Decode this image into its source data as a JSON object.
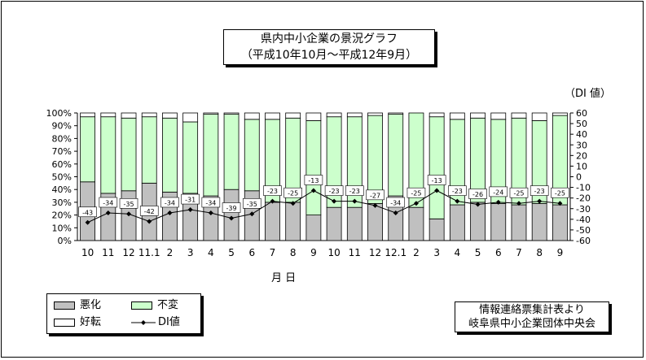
{
  "title": {
    "line1": "県内中小企業の景況グラフ",
    "line2": "（平成10年10月～平成12年9月）"
  },
  "right_axis_unit": "（DI 値）",
  "x_axis_title": "月 日",
  "legend": {
    "bad": "悪化",
    "same": "不変",
    "good": "好転",
    "di": "DI値"
  },
  "source": {
    "line1": "情報連絡票集計表より",
    "line2": "岐阜県中小企業団体中央会"
  },
  "colors": {
    "bad": "#c0c0c0",
    "same": "#ccffcc",
    "good": "#ffffff",
    "di_line": "#000000"
  },
  "chart_data": {
    "type": "bar",
    "stacked": true,
    "categories": [
      "10",
      "11",
      "12",
      "11.1",
      "2",
      "3",
      "4",
      "5",
      "6",
      "7",
      "8",
      "9",
      "10",
      "11",
      "12",
      "12.1",
      "2",
      "3",
      "4",
      "5",
      "6",
      "7",
      "8",
      "9"
    ],
    "series": [
      {
        "name": "悪化",
        "values": [
          46,
          37,
          39,
          45,
          38,
          37,
          35,
          40,
          39,
          30,
          30,
          20,
          26,
          26,
          29,
          35,
          26,
          17,
          28,
          30,
          29,
          28,
          29,
          28
        ]
      },
      {
        "name": "不変",
        "values": [
          51,
          60,
          57,
          52,
          58,
          56,
          64,
          59,
          56,
          65,
          66,
          74,
          71,
          71,
          69,
          64,
          74,
          80,
          67,
          66,
          66,
          68,
          65,
          70
        ]
      },
      {
        "name": "好転",
        "values": [
          3,
          3,
          4,
          3,
          4,
          7,
          1,
          1,
          5,
          5,
          4,
          6,
          3,
          3,
          2,
          1,
          0,
          3,
          5,
          4,
          5,
          4,
          6,
          2
        ]
      }
    ],
    "di": {
      "name": "DI値",
      "values": [
        -43,
        -34,
        -35,
        -42,
        -34,
        -31,
        -34,
        -39,
        -35,
        -23,
        -25,
        -13,
        -23,
        -23,
        -27,
        -34,
        -25,
        -13,
        -23,
        -26,
        -24,
        -25,
        -23,
        -25
      ]
    },
    "left_axis": {
      "ticks": [
        "0%",
        "10%",
        "20%",
        "30%",
        "40%",
        "50%",
        "60%",
        "70%",
        "80%",
        "90%",
        "100%"
      ],
      "ylim": [
        0,
        100
      ]
    },
    "right_axis": {
      "ticks": [
        "60",
        "50",
        "40",
        "30",
        "20",
        "10",
        "0",
        "-10",
        "-20",
        "-30",
        "-40",
        "-50",
        "-60"
      ],
      "ylim": [
        -60,
        60
      ]
    }
  }
}
